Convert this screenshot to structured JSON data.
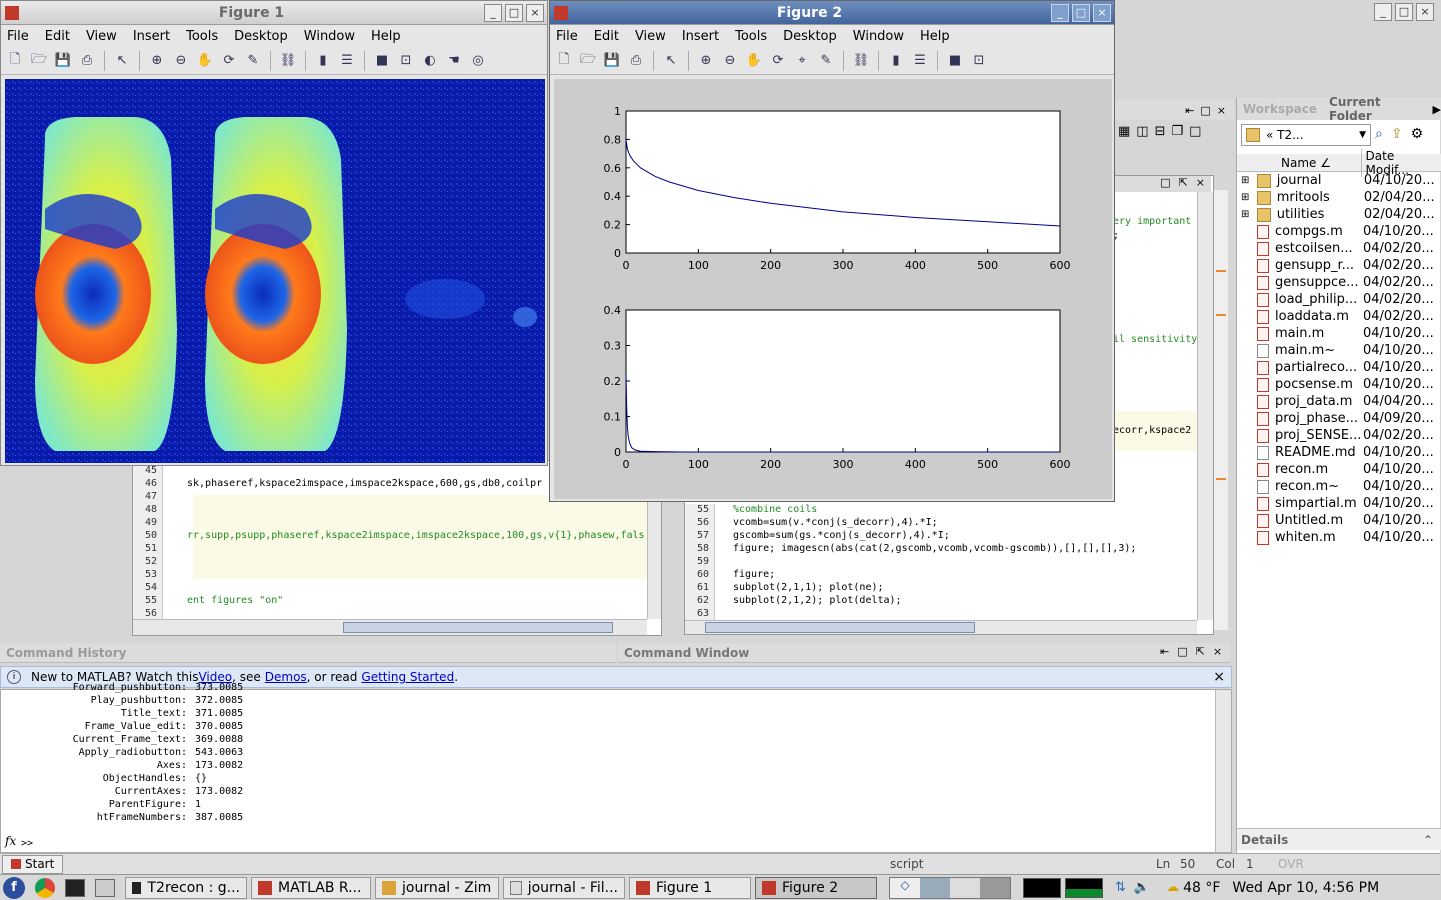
{
  "figure1": {
    "title": "Figure 1",
    "menus": [
      "File",
      "Edit",
      "View",
      "Insert",
      "Tools",
      "Desktop",
      "Window",
      "Help"
    ]
  },
  "figure2": {
    "title": "Figure 2",
    "menus": [
      "File",
      "Edit",
      "View",
      "Insert",
      "Tools",
      "Desktop",
      "Window",
      "Help"
    ]
  },
  "chart_data": [
    {
      "type": "line",
      "x": [
        0,
        2,
        5,
        10,
        20,
        40,
        60,
        100,
        150,
        200,
        300,
        400,
        500,
        600
      ],
      "y": [
        0.8,
        0.73,
        0.69,
        0.65,
        0.6,
        0.54,
        0.5,
        0.44,
        0.39,
        0.35,
        0.29,
        0.25,
        0.22,
        0.19
      ],
      "xlim": [
        0,
        600
      ],
      "ylim": [
        0,
        1
      ],
      "xticks": [
        "0",
        "100",
        "200",
        "300",
        "400",
        "500",
        "600"
      ],
      "yticks": [
        "0",
        "0.2",
        "0.4",
        "0.6",
        "0.8",
        "1"
      ]
    },
    {
      "type": "line",
      "x": [
        0,
        1,
        2,
        3,
        5,
        8,
        12,
        20,
        40,
        80,
        600
      ],
      "y": [
        0.22,
        0.12,
        0.07,
        0.045,
        0.025,
        0.012,
        0.006,
        0.002,
        0.001,
        0.0,
        0.0
      ],
      "xlim": [
        0,
        600
      ],
      "ylim": [
        0,
        0.4
      ],
      "xticks": [
        "0",
        "100",
        "200",
        "300",
        "400",
        "500",
        "600"
      ],
      "yticks": [
        "0",
        "0.1",
        "0.2",
        "0.3",
        "0.4"
      ]
    }
  ],
  "editor_left": {
    "lines": [
      {
        "n": "45",
        "t": ""
      },
      {
        "n": "46",
        "t": "sk,phaseref,kspace2imspace,imspace2kspace,600,gs,db0,coilpr"
      },
      {
        "n": "47",
        "t": ""
      },
      {
        "n": "48",
        "t": ""
      },
      {
        "n": "49",
        "t": ""
      },
      {
        "n": "50",
        "t": "rr,supp,psupp,phaseref,kspace2imspace,imspace2kspace,100,gs,v{1},phasew,fals"
      },
      {
        "n": "51",
        "t": ""
      },
      {
        "n": "52",
        "t": ""
      },
      {
        "n": "53",
        "t": ""
      },
      {
        "n": "54",
        "t": ""
      },
      {
        "n": "55",
        "t": "ent figures \"on\""
      },
      {
        "n": "56",
        "t": ""
      }
    ]
  },
  "editor_right": {
    "fragments": [
      "ery important",
      ";",
      "il sensitivity",
      "ecorr,kspace2"
    ],
    "lines": [
      {
        "n": "55",
        "t": "%combine coils",
        "c": "green"
      },
      {
        "n": "56",
        "t": "vcomb=sum(v.*conj(s_decorr),4).*I;",
        "c": ""
      },
      {
        "n": "57",
        "t": "gscomb=sum(gs.*conj(s_decorr),4).*I;",
        "c": ""
      },
      {
        "n": "58",
        "t": "figure; imagescn(abs(cat(2,gscomb,vcomb,vcomb-gscomb)),[],[],[],3);",
        "c": ""
      },
      {
        "n": "59",
        "t": "",
        "c": ""
      },
      {
        "n": "60",
        "t": "figure;",
        "c": ""
      },
      {
        "n": "61",
        "t": "subplot(2,1,1); plot(ne);",
        "c": ""
      },
      {
        "n": "62",
        "t": "subplot(2,1,2); plot(delta);",
        "c": ""
      },
      {
        "n": "63",
        "t": "",
        "c": ""
      }
    ]
  },
  "panels": {
    "command_history": "Command History",
    "command_window": "Command Window",
    "workspace": "Workspace",
    "current_folder": "Current Folder",
    "details": "Details"
  },
  "banner": {
    "prefix": "New to MATLAB? Watch this ",
    "video": "Video",
    "mid1": ", see ",
    "demos": "Demos",
    "mid2": ", or read ",
    "gs": "Getting Started",
    "end": "."
  },
  "console": [
    {
      "k": "Forward_pushbutton:",
      "v": "373.0085"
    },
    {
      "k": "Play_pushbutton:",
      "v": "372.0085"
    },
    {
      "k": "Title_text:",
      "v": "371.0085"
    },
    {
      "k": "Frame_Value_edit:",
      "v": "370.0085"
    },
    {
      "k": "Current_Frame_text:",
      "v": "369.0088"
    },
    {
      "k": "Apply_radiobutton:",
      "v": "543.0063"
    },
    {
      "k": "Axes:",
      "v": "173.0082"
    },
    {
      "k": "ObjectHandles:",
      "v": "{}"
    },
    {
      "k": "CurrentAxes:",
      "v": "173.0082"
    },
    {
      "k": "ParentFigure:",
      "v": "1"
    },
    {
      "k": "htFrameNumbers:",
      "v": "387.0085"
    }
  ],
  "prompt": ">>",
  "folder": {
    "path": "« T2...",
    "col_name": "Name ∠",
    "col_date": "Date Modif...",
    "items": [
      {
        "name": "journal",
        "date": "04/10/20...",
        "kind": "folder"
      },
      {
        "name": "mritools",
        "date": "02/04/20...",
        "kind": "folder"
      },
      {
        "name": "utilities",
        "date": "02/04/20...",
        "kind": "folder"
      },
      {
        "name": "compgs.m",
        "date": "04/10/20...",
        "kind": "m"
      },
      {
        "name": "estcoilsen...",
        "date": "04/02/20...",
        "kind": "m"
      },
      {
        "name": "gensupp_r...",
        "date": "04/02/20...",
        "kind": "m"
      },
      {
        "name": "gensuppce...",
        "date": "04/02/20...",
        "kind": "m"
      },
      {
        "name": "load_philip...",
        "date": "04/02/20...",
        "kind": "m"
      },
      {
        "name": "loaddata.m",
        "date": "04/02/20...",
        "kind": "m"
      },
      {
        "name": "main.m",
        "date": "04/10/20...",
        "kind": "m"
      },
      {
        "name": "main.m~",
        "date": "04/10/20...",
        "kind": "f"
      },
      {
        "name": "partialreco...",
        "date": "04/10/20...",
        "kind": "m"
      },
      {
        "name": "pocsense.m",
        "date": "04/10/20...",
        "kind": "m"
      },
      {
        "name": "proj_data.m",
        "date": "04/04/20...",
        "kind": "m"
      },
      {
        "name": "proj_phase...",
        "date": "04/09/20...",
        "kind": "m"
      },
      {
        "name": "proj_SENSE...",
        "date": "04/02/20...",
        "kind": "m"
      },
      {
        "name": "README.md",
        "date": "04/10/20...",
        "kind": "f"
      },
      {
        "name": "recon.m",
        "date": "04/10/20...",
        "kind": "m"
      },
      {
        "name": "recon.m~",
        "date": "04/10/20...",
        "kind": "f"
      },
      {
        "name": "simpartial.m",
        "date": "04/10/20...",
        "kind": "m"
      },
      {
        "name": "Untitled.m",
        "date": "04/10/20...",
        "kind": "m"
      },
      {
        "name": "whiten.m",
        "date": "04/10/20...",
        "kind": "m"
      }
    ]
  },
  "statusbar": {
    "start": "Start",
    "mode": "script",
    "ln_label": "Ln",
    "ln": "50",
    "col_label": "Col",
    "col": "1",
    "ovr": "OVR"
  },
  "taskbar": {
    "items": [
      "T2recon : g...",
      "MATLAB  R...",
      "journal - Zim",
      "journal - Fil...",
      "Figure 1",
      "Figure 2"
    ],
    "weather": "48 °F",
    "clock": "Wed Apr 10,  4:56 PM"
  },
  "colors": {
    "plot_line": "#00008b",
    "title_active": "#41649c",
    "link": "#0000cc",
    "banner_bg": "#dce8f5"
  }
}
